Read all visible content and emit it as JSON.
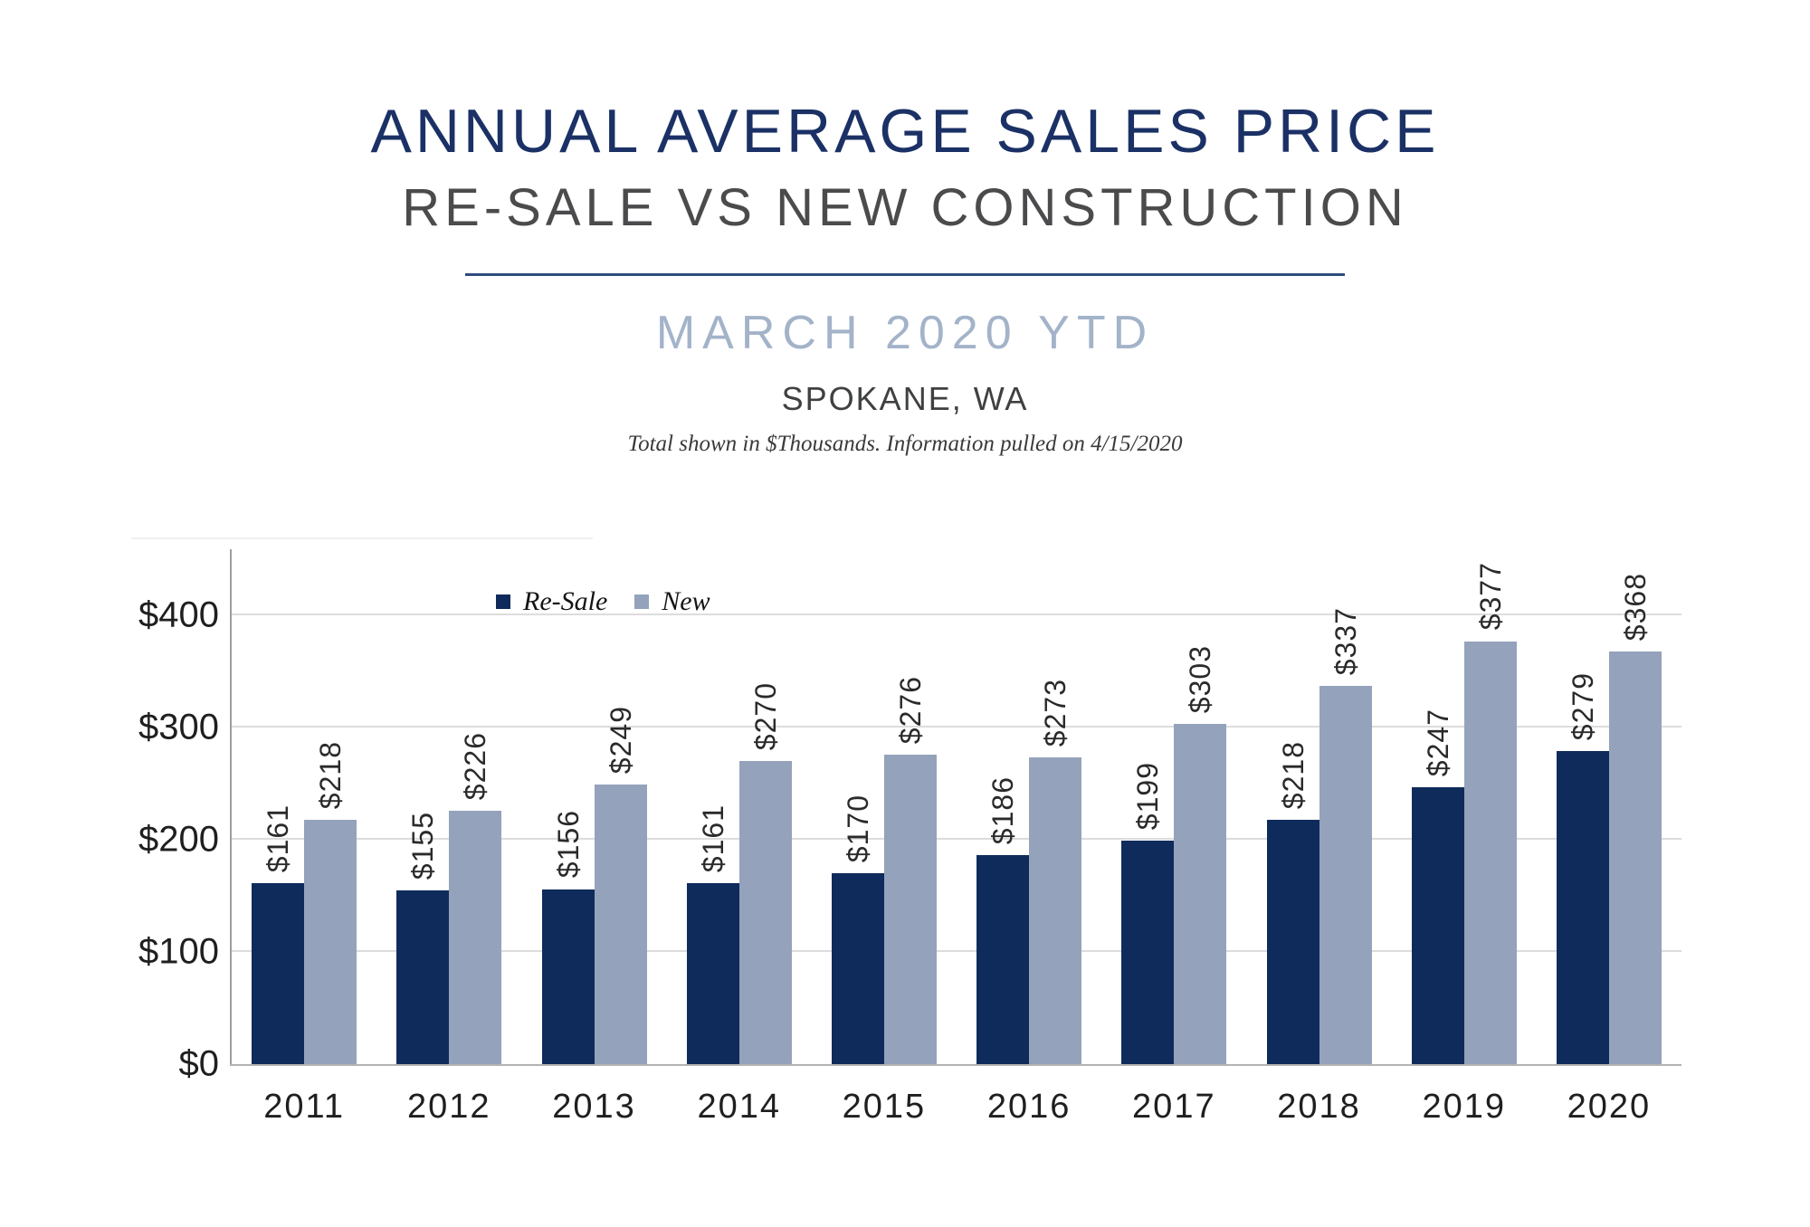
{
  "header": {
    "title": "ANNUAL AVERAGE SALES PRICE",
    "subtitle": "RE-SALE VS NEW CONSTRUCTION",
    "period": "MARCH 2020 YTD",
    "location": "SPOKANE, WA",
    "footnote": "Total shown in $Thousands. Information pulled on 4/15/2020"
  },
  "colors": {
    "title": "#1b3166",
    "subtitle": "#4b4b4d",
    "period": "#a3b3c9",
    "divider": "#2e4c7e",
    "resale": "#0f2b5b",
    "new": "#94a3bb",
    "gridline": "#dcdcdc",
    "axis": "#9e9e9e"
  },
  "legend": {
    "items": [
      {
        "label": "Re-Sale",
        "color": "#0f2b5b"
      },
      {
        "label": "New",
        "color": "#94a3bb"
      }
    ]
  },
  "chart_data": {
    "type": "bar",
    "title": "Annual Average Sales Price, Re-Sale vs New Construction, March 2020 YTD, Spokane WA",
    "categories": [
      "2011",
      "2012",
      "2013",
      "2014",
      "2015",
      "2016",
      "2017",
      "2018",
      "2019",
      "2020"
    ],
    "series": [
      {
        "name": "Re-Sale",
        "color": "#0f2b5b",
        "values": [
          161,
          155,
          156,
          161,
          170,
          186,
          199,
          218,
          247,
          279
        ],
        "labels": [
          "$161",
          "$155",
          "$156",
          "$161",
          "$170",
          "$186",
          "$199",
          "$218",
          "$247",
          "$279"
        ]
      },
      {
        "name": "New",
        "color": "#94a3bb",
        "values": [
          218,
          226,
          249,
          270,
          276,
          273,
          303,
          337,
          377,
          368
        ],
        "labels": [
          "$218",
          "$226",
          "$249",
          "$270",
          "$276",
          "$273",
          "$303",
          "$337",
          "$377",
          "$368"
        ]
      }
    ],
    "xlabel": "",
    "ylabel": "",
    "units": "$Thousands",
    "y_ticks": [
      "$0",
      "$100",
      "$200",
      "$300",
      "$400"
    ],
    "y_tick_values": [
      0,
      100,
      200,
      300,
      400
    ],
    "ylim": [
      0,
      459
    ],
    "grid": true,
    "legend_position": "top-inside-left"
  }
}
